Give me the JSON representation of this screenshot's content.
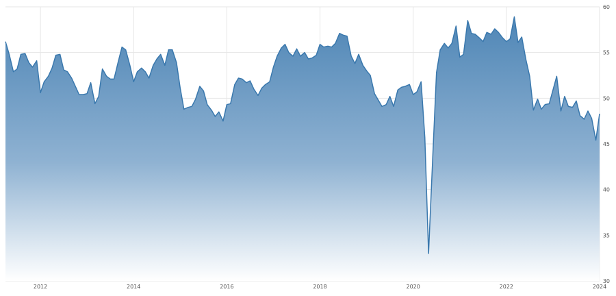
{
  "chart_data": {
    "type": "area",
    "title": "",
    "xlabel": "",
    "ylabel": "",
    "xlim": [
      2011.25,
      2024.0
    ],
    "ylim": [
      30,
      60
    ],
    "yticks": [
      30,
      35,
      40,
      45,
      50,
      55,
      60
    ],
    "xticks": [
      2012,
      2014,
      2016,
      2018,
      2020,
      2022,
      2024
    ],
    "xtick_labels": [
      "2012",
      "2014",
      "2016",
      "2018",
      "2020",
      "2022",
      "2024"
    ],
    "grid": true,
    "legend": "none",
    "colors": {
      "line": "#3a78ad",
      "fill_top": "#4f86b6",
      "fill_bottom": "#ffffff",
      "grid": "#e6e6e6"
    },
    "series": [
      {
        "x": [
          2011.25,
          2011.33,
          2011.42,
          2011.5,
          2011.58,
          2011.67,
          2011.75,
          2011.83,
          2011.92,
          2012.0,
          2012.08,
          2012.17,
          2012.25,
          2012.33,
          2012.42,
          2012.5,
          2012.58,
          2012.67,
          2012.75,
          2012.83,
          2012.92,
          2013.0,
          2013.08,
          2013.17,
          2013.25,
          2013.33,
          2013.42,
          2013.5,
          2013.58,
          2013.67,
          2013.75,
          2013.83,
          2013.92,
          2014.0,
          2014.08,
          2014.17,
          2014.25,
          2014.33,
          2014.42,
          2014.5,
          2014.58,
          2014.67,
          2014.75,
          2014.83,
          2014.92,
          2015.0,
          2015.08,
          2015.17,
          2015.25,
          2015.33,
          2015.42,
          2015.5,
          2015.58,
          2015.67,
          2015.75,
          2015.83,
          2015.92,
          2016.0,
          2016.08,
          2016.17,
          2016.25,
          2016.33,
          2016.42,
          2016.5,
          2016.58,
          2016.67,
          2016.75,
          2016.83,
          2016.92,
          2017.0,
          2017.08,
          2017.17,
          2017.25,
          2017.33,
          2017.42,
          2017.5,
          2017.58,
          2017.67,
          2017.75,
          2017.83,
          2017.92,
          2018.0,
          2018.08,
          2018.17,
          2018.25,
          2018.33,
          2018.42,
          2018.5,
          2018.58,
          2018.67,
          2018.75,
          2018.83,
          2018.92,
          2019.0,
          2019.08,
          2019.17,
          2019.25,
          2019.33,
          2019.42,
          2019.5,
          2019.58,
          2019.67,
          2019.75,
          2019.83,
          2019.92,
          2020.0,
          2020.08,
          2020.17,
          2020.25,
          2020.33,
          2020.42,
          2020.5,
          2020.58,
          2020.67,
          2020.75,
          2020.83,
          2020.92,
          2021.0,
          2021.08,
          2021.17,
          2021.25,
          2021.33,
          2021.42,
          2021.5,
          2021.58,
          2021.67,
          2021.75,
          2021.83,
          2021.92,
          2022.0,
          2022.08,
          2022.17,
          2022.25,
          2022.33,
          2022.42,
          2022.5,
          2022.58,
          2022.67,
          2022.75,
          2022.83,
          2022.92,
          2023.0,
          2023.08,
          2023.17,
          2023.25,
          2023.33,
          2023.42,
          2023.5,
          2023.58,
          2023.67,
          2023.75,
          2023.83,
          2023.92,
          2024.0
        ],
        "y": [
          56.2,
          54.8,
          52.9,
          53.2,
          54.8,
          54.9,
          53.9,
          53.4,
          54.1,
          50.6,
          51.8,
          52.4,
          53.3,
          54.7,
          54.8,
          53.1,
          52.9,
          52.2,
          51.3,
          50.4,
          50.4,
          50.5,
          51.7,
          49.4,
          50.2,
          53.2,
          52.4,
          52.1,
          52.1,
          54.0,
          55.6,
          55.3,
          53.6,
          51.8,
          52.9,
          53.3,
          52.9,
          52.2,
          53.6,
          54.3,
          54.8,
          53.6,
          55.3,
          55.3,
          53.9,
          51.1,
          48.8,
          49.0,
          49.1,
          49.9,
          51.3,
          50.8,
          49.3,
          48.7,
          48.0,
          48.5,
          47.5,
          49.3,
          49.4,
          51.5,
          52.2,
          52.1,
          51.7,
          51.9,
          51.0,
          50.3,
          51.1,
          51.5,
          51.8,
          53.4,
          54.6,
          55.5,
          55.9,
          55.0,
          54.6,
          55.4,
          54.6,
          55.0,
          54.3,
          54.4,
          54.7,
          55.9,
          55.6,
          55.7,
          55.6,
          56.0,
          57.1,
          56.9,
          56.8,
          54.6,
          53.8,
          54.8,
          53.6,
          53.0,
          52.5,
          50.5,
          49.8,
          49.1,
          49.3,
          50.2,
          49.1,
          50.9,
          51.2,
          51.3,
          51.5,
          50.4,
          50.7,
          51.8,
          45.7,
          33.0,
          43.6,
          52.8,
          55.3,
          56.0,
          55.5,
          56.0,
          57.9,
          54.5,
          54.8,
          58.5,
          57.1,
          57.0,
          56.6,
          56.2,
          57.2,
          57.0,
          57.6,
          57.2,
          56.6,
          56.2,
          56.5,
          58.9,
          56.1,
          56.7,
          54.2,
          52.4,
          48.7,
          49.9,
          48.8,
          49.3,
          49.4,
          50.9,
          52.4,
          48.6,
          50.2,
          49.1,
          49.0,
          49.7,
          48.1,
          47.7,
          48.6,
          47.8,
          45.4,
          48.3
        ]
      }
    ]
  }
}
